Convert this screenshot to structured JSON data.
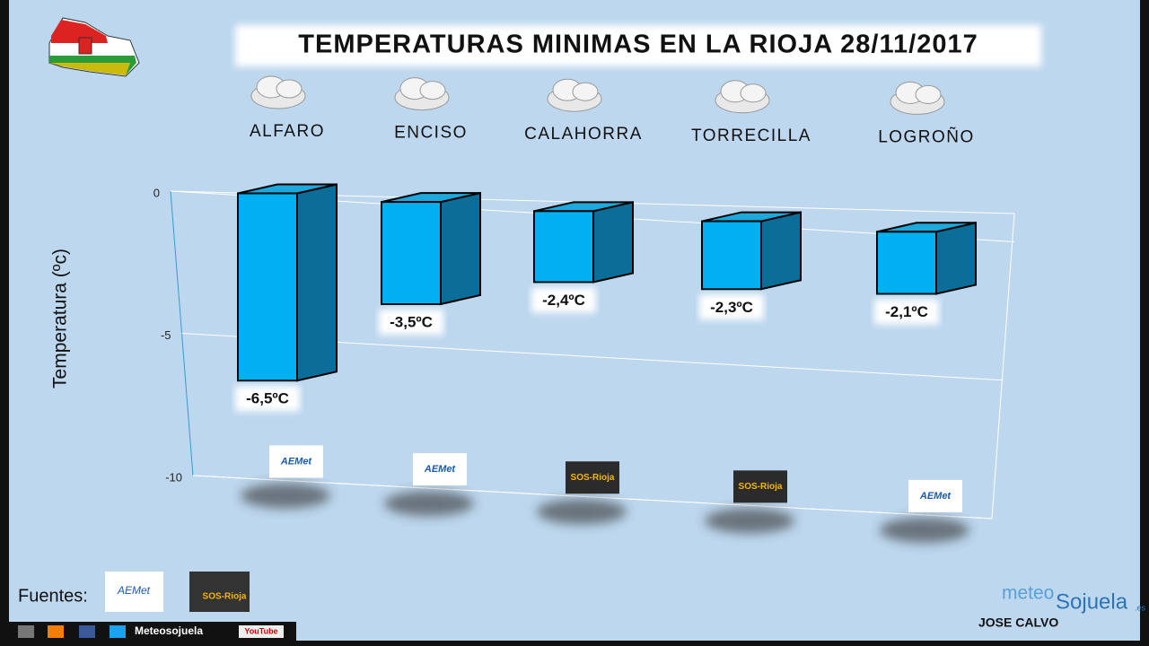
{
  "chart_data": {
    "type": "bar3d",
    "title": "TEMPERATURAS MINIMAS EN LA RIOJA 28/11/2017",
    "y_label": "Temperatura (ºc)",
    "categories": [
      "ALFARO",
      "ENCISO",
      "CALAHORRA",
      "TORRECILLA",
      "LOGROÑO"
    ],
    "values": [
      -6.5,
      -3.5,
      -2.4,
      -2.3,
      -2.1
    ],
    "value_labels": [
      "-6,5ºC",
      "-3,5ºC",
      "-2,4ºC",
      "-2,3ºC",
      "-2,1ºC"
    ],
    "sources": [
      "AEMet",
      "AEMet",
      "SOS-Rioja",
      "SOS-Rioja",
      "AEMet"
    ],
    "color": "#00b0f0",
    "ylim": [
      -10,
      0
    ],
    "yticks": [
      0,
      -5,
      -10
    ],
    "grid": true
  },
  "footer": {
    "sources_label": "Fuentes:",
    "source_logos": [
      "AEMet",
      "SOS-Rioja"
    ],
    "social": "Meteosojuela",
    "youtube": "YouTube",
    "brand": [
      "meteo",
      "Sojuela",
      ".es"
    ],
    "author": "JOSE CALVO"
  }
}
